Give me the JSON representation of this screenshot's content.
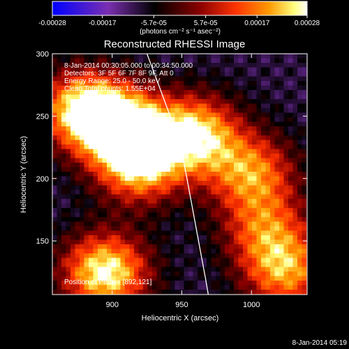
{
  "colorbar": {
    "ticks": [
      "-0.00028",
      "-0.00017",
      "-5.7e-05",
      "5.7e-05",
      "0.00017",
      "0.00028"
    ],
    "units_label": "(photons cm⁻² s⁻¹ asec⁻²)",
    "range": [
      -0.00028,
      0.00028
    ],
    "colormap": [
      "#0000ff",
      "#7a2fb0",
      "#000000",
      "#8a0000",
      "#ff3300",
      "#ff9900",
      "#ffff80",
      "#ffffff"
    ]
  },
  "image_info": {
    "title": "Reconstructed RHESSI Image",
    "line1": "8-Jan-2014 00:30:05.000 to 00:34:50.000",
    "line2": "Detectors: 3F 5F 6F 7F 8F 9F, Att 0",
    "line3": "Energy Range: 25.0 - 50.0 keV",
    "line4": "Clean     Total counts: 1.55E+04",
    "peak": "Position of Peak = [892,121]"
  },
  "timestamp": "8-Jan-2014 05:19",
  "chart_data": {
    "type": "heatmap",
    "title": "Reconstructed RHESSI Image",
    "xlabel": "Heliocentric X (arcsec)",
    "ylabel": "Heliocentric Y (arcsec)",
    "xlim": [
      857,
      1040
    ],
    "ylim": [
      107,
      300
    ],
    "xticks": [
      900,
      950,
      1000
    ],
    "yticks": [
      150,
      200,
      250,
      300
    ],
    "limb_curve": [
      [
        925,
        300
      ],
      [
        935,
        270
      ],
      [
        945,
        240
      ],
      [
        952,
        210
      ],
      [
        957,
        180
      ],
      [
        962,
        150
      ],
      [
        967,
        120
      ],
      [
        969,
        107
      ]
    ],
    "emission_regions": [
      {
        "x": 880,
        "y": 255,
        "peak": 0.00028
      },
      {
        "x": 910,
        "y": 240,
        "peak": 0.00026
      },
      {
        "x": 960,
        "y": 235,
        "peak": 0.00025
      },
      {
        "x": 920,
        "y": 210,
        "peak": 0.0002
      },
      {
        "x": 895,
        "y": 125,
        "peak": 0.00028
      },
      {
        "x": 1000,
        "y": 205,
        "peak": 0.00017
      },
      {
        "x": 1025,
        "y": 125,
        "peak": 0.00018
      },
      {
        "x": 1010,
        "y": 160,
        "peak": 0.00012
      }
    ]
  }
}
